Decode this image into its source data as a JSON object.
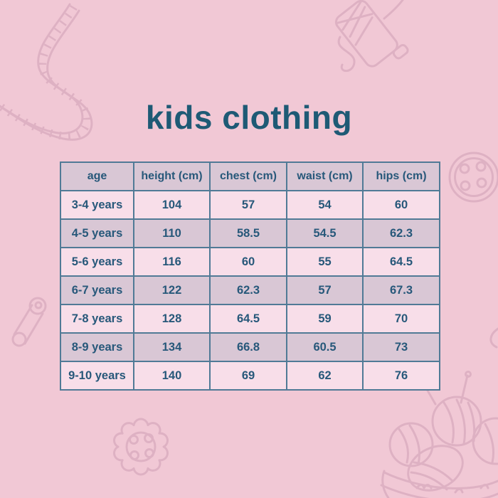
{
  "title": "kids clothing",
  "colors": {
    "background": "#f1c8d5",
    "title_text": "#1e5a75",
    "table_border": "#507a96",
    "header_row_bg": "#d9c7d5",
    "odd_row_bg": "#f8dee9",
    "even_row_bg": "#d9c7d5",
    "cell_text": "#27587a",
    "doodle": "#cf9fb5"
  },
  "decorations": [
    {
      "name": "measuring-tape-icon",
      "position": "top-left"
    },
    {
      "name": "thread-spool-icon",
      "position": "top-right"
    },
    {
      "name": "button-icon",
      "position": "right-middle"
    },
    {
      "name": "safety-pin-icon",
      "position": "left-middle"
    },
    {
      "name": "scalloped-button-icon",
      "position": "bottom-left"
    },
    {
      "name": "yarn-basket-icon",
      "position": "bottom-right"
    },
    {
      "name": "thread-curl-icon",
      "position": "right-lower"
    }
  ],
  "chart_data": {
    "type": "table",
    "title": "kids clothing",
    "columns": [
      "age",
      "height (cm)",
      "chest (cm)",
      "waist (cm)",
      "hips (cm)"
    ],
    "rows": [
      [
        "3-4 years",
        "104",
        "57",
        "54",
        "60"
      ],
      [
        "4-5 years",
        "110",
        "58.5",
        "54.5",
        "62.3"
      ],
      [
        "5-6 years",
        "116",
        "60",
        "55",
        "64.5"
      ],
      [
        "6-7 years",
        "122",
        "62.3",
        "57",
        "67.3"
      ],
      [
        "7-8 years",
        "128",
        "64.5",
        "59",
        "70"
      ],
      [
        "8-9 years",
        "134",
        "66.8",
        "60.5",
        "73"
      ],
      [
        "9-10 years",
        "140",
        "69",
        "62",
        "76"
      ]
    ]
  }
}
